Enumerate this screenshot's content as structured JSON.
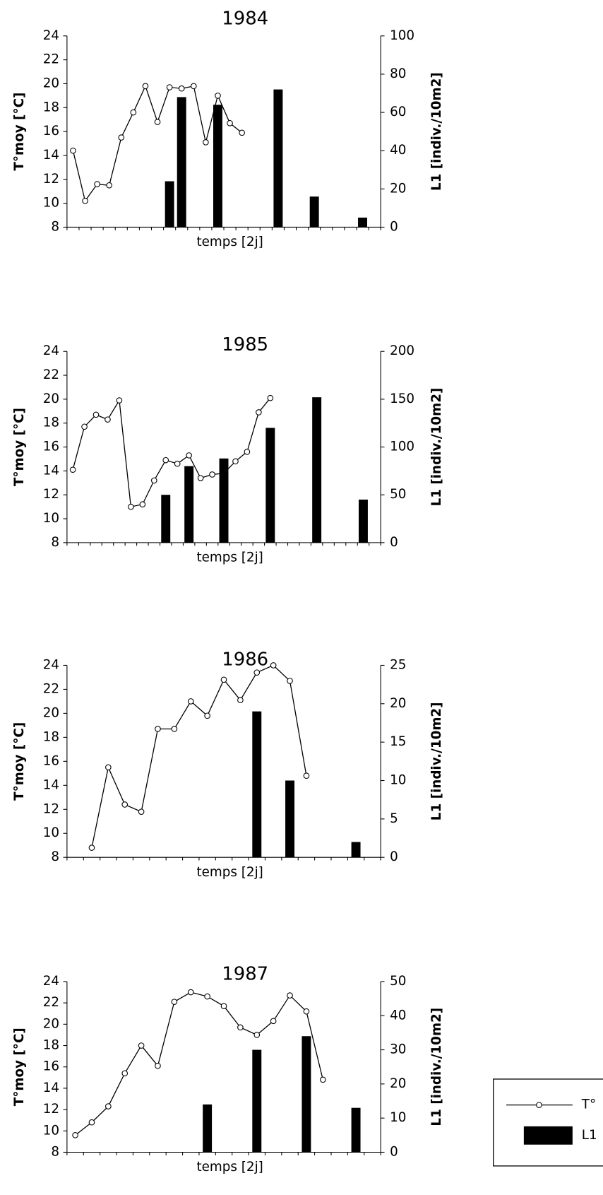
{
  "chart_data": [
    {
      "type": "combo",
      "title": "1984",
      "xlabel": "temps [2j]",
      "ylabel": "T°moy [°C]",
      "y2label": "L1 [indiv./10m2]",
      "categories": [
        null,
        null,
        null,
        null,
        null,
        null,
        null,
        null,
        null,
        null,
        null,
        null,
        null,
        null,
        null,
        null,
        null,
        null,
        null,
        null,
        null,
        null,
        null,
        null,
        null,
        null
      ],
      "series": [
        {
          "name": "T°",
          "color": "#000000",
          "values": [
            14.4,
            10.2,
            11.6,
            11.5,
            15.5,
            17.6,
            19.8,
            16.8,
            19.7,
            19.6,
            19.8,
            15.1,
            19.0,
            16.7,
            15.9,
            null,
            null,
            null,
            null,
            null,
            null,
            null,
            null,
            null,
            null,
            null
          ]
        },
        {
          "name": "L1",
          "color": "#000000",
          "axis": "y2",
          "values": [
            null,
            null,
            null,
            null,
            null,
            null,
            null,
            null,
            24,
            68,
            null,
            null,
            64,
            null,
            null,
            null,
            null,
            72,
            null,
            null,
            16,
            null,
            null,
            null,
            5,
            null
          ]
        }
      ],
      "ylim": [
        8,
        24
      ],
      "yticks": [
        8,
        10,
        12,
        14,
        16,
        18,
        20,
        22,
        24
      ],
      "y2lim": [
        0,
        100
      ],
      "y2ticks": [
        0,
        20,
        40,
        60,
        80,
        100
      ]
    },
    {
      "type": "combo",
      "title": "1985",
      "xlabel": "temps [2j]",
      "ylabel": "T°moy [°C]",
      "y2label": "L1 [indiv./10m2]",
      "categories": [
        null,
        null,
        null,
        null,
        null,
        null,
        null,
        null,
        null,
        null,
        null,
        null,
        null,
        null,
        null,
        null,
        null,
        null,
        null,
        null,
        null,
        null,
        null,
        null,
        null,
        null,
        null
      ],
      "series": [
        {
          "name": "T°",
          "color": "#000000",
          "values": [
            14.1,
            17.7,
            18.7,
            18.3,
            19.9,
            11.0,
            11.2,
            13.2,
            14.9,
            14.6,
            15.3,
            13.4,
            13.7,
            13.8,
            14.8,
            15.6,
            18.9,
            20.1,
            null,
            null,
            null,
            null,
            null,
            null,
            null,
            null,
            null
          ]
        },
        {
          "name": "L1",
          "color": "#000000",
          "axis": "y2",
          "values": [
            null,
            null,
            null,
            null,
            null,
            null,
            null,
            null,
            50,
            null,
            80,
            null,
            null,
            88,
            null,
            null,
            null,
            120,
            null,
            null,
            null,
            152,
            null,
            null,
            null,
            45,
            null
          ]
        }
      ],
      "ylim": [
        8,
        24
      ],
      "yticks": [
        8,
        10,
        12,
        14,
        16,
        18,
        20,
        22,
        24
      ],
      "y2lim": [
        0,
        200
      ],
      "y2ticks": [
        0,
        50,
        100,
        150,
        200
      ]
    },
    {
      "type": "combo",
      "title": "1986",
      "xlabel": "temps [2j]",
      "ylabel": "T°moy [°C]",
      "y2label": "L1 [indiv./10m2]",
      "categories": [
        null,
        null,
        null,
        null,
        null,
        null,
        null,
        null,
        null,
        null,
        null,
        null,
        null,
        null,
        null,
        null,
        null,
        null,
        null
      ],
      "series": [
        {
          "name": "T°",
          "color": "#000000",
          "values": [
            null,
            8.8,
            15.5,
            12.4,
            11.8,
            18.7,
            18.7,
            21.0,
            19.8,
            22.8,
            21.1,
            23.4,
            24.0,
            22.7,
            14.8,
            null,
            null,
            null,
            null
          ]
        },
        {
          "name": "L1",
          "color": "#000000",
          "axis": "y2",
          "values": [
            null,
            null,
            null,
            null,
            null,
            null,
            null,
            null,
            null,
            null,
            null,
            19,
            null,
            10,
            null,
            null,
            null,
            2,
            null
          ]
        }
      ],
      "ylim": [
        8,
        24
      ],
      "yticks": [
        8,
        10,
        12,
        14,
        16,
        18,
        20,
        22,
        24
      ],
      "y2lim": [
        0,
        25
      ],
      "y2ticks": [
        0,
        5,
        10,
        15,
        20,
        25
      ]
    },
    {
      "type": "combo",
      "title": "1987",
      "xlabel": "temps [2j]",
      "ylabel": "T°moy [°C]",
      "y2label": "L1 [indiv./10m2]",
      "categories": [
        null,
        null,
        null,
        null,
        null,
        null,
        null,
        null,
        null,
        null,
        null,
        null,
        null,
        null,
        null,
        null,
        null,
        null,
        null
      ],
      "series": [
        {
          "name": "T°",
          "color": "#000000",
          "values": [
            9.6,
            10.8,
            12.3,
            15.4,
            18.0,
            16.1,
            22.1,
            23.0,
            22.6,
            21.7,
            19.7,
            19.0,
            20.3,
            22.7,
            21.2,
            14.8,
            null,
            null,
            null
          ]
        },
        {
          "name": "L1",
          "color": "#000000",
          "axis": "y2",
          "values": [
            null,
            null,
            null,
            null,
            null,
            null,
            null,
            null,
            14,
            null,
            null,
            30,
            null,
            null,
            34,
            null,
            null,
            13,
            null
          ]
        }
      ],
      "ylim": [
        8,
        24
      ],
      "yticks": [
        8,
        10,
        12,
        14,
        16,
        18,
        20,
        22,
        24
      ],
      "y2lim": [
        0,
        50
      ],
      "y2ticks": [
        0,
        10,
        20,
        30,
        40,
        50
      ]
    }
  ]
}
